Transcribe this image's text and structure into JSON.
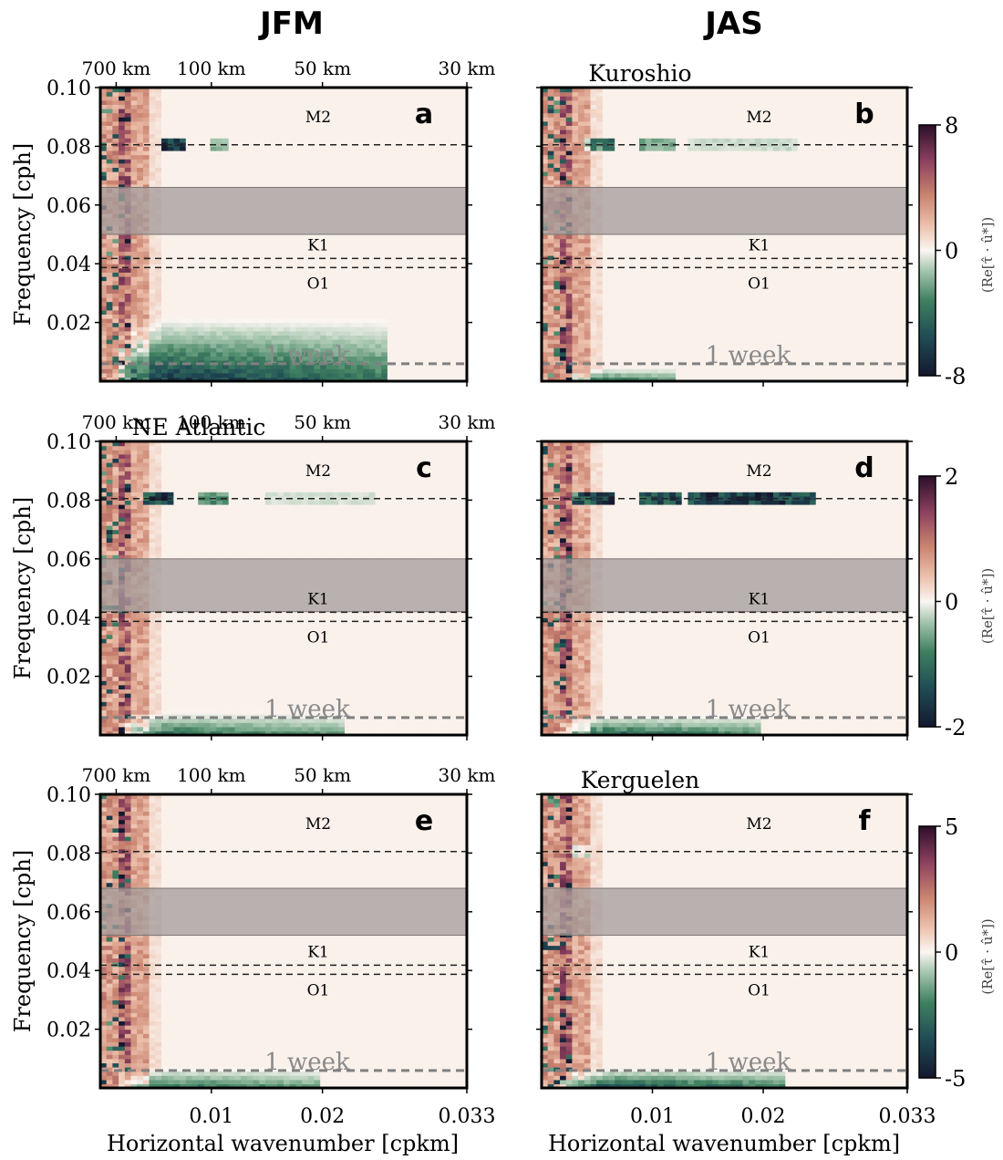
{
  "column_titles": [
    "JFM",
    "JAS"
  ],
  "xlabel": "Horizontal wavenumber [cpkm]",
  "ylabel": "Frequency [cph]",
  "colorbar_label": "(Re[τ̂ · û*])",
  "chart_data": {
    "type": "heatmap",
    "xlim": [
      0.0,
      0.033
    ],
    "ylim": [
      0.0,
      0.1
    ],
    "x_ticks": [
      0.01,
      0.02,
      0.033
    ],
    "x_tick_labels": [
      "0.01",
      "0.02",
      "0.033"
    ],
    "y_ticks": [
      0.02,
      0.04,
      0.06,
      0.08,
      0.1
    ],
    "y_tick_labels": [
      "0.02",
      "0.04",
      "0.06",
      "0.08",
      "0.10"
    ],
    "top_axis": {
      "wavelength_labels": [
        "700 km",
        "100 km",
        "50 km",
        "30 km"
      ],
      "wavenumbers": [
        0.00143,
        0.01,
        0.02,
        0.033
      ]
    },
    "horizontal_lines": [
      {
        "name": "M2",
        "frequency": 0.0805
      },
      {
        "name": "K1",
        "frequency": 0.0418
      },
      {
        "name": "O1",
        "frequency": 0.0387
      },
      {
        "name": "1 week",
        "frequency": 0.00595
      }
    ],
    "panels": [
      {
        "id": "a",
        "season": "JFM",
        "region": "",
        "shaded_band": [
          0.05,
          0.066
        ],
        "color_limit": 8,
        "m2_blobs": [
          [
            0.0055,
            0.0075,
            0.9
          ],
          [
            0.01,
            0.0115,
            0.25
          ]
        ],
        "low_freq": {
          "kmax": 0.026,
          "fmax": 0.022,
          "strength": 0.9
        }
      },
      {
        "id": "b",
        "season": "JAS",
        "region": "Kuroshio",
        "shaded_band": [
          0.05,
          0.066
        ],
        "color_limit": 8,
        "m2_blobs": [
          [
            0.004,
            0.0065,
            0.55
          ],
          [
            0.009,
            0.012,
            0.3
          ],
          [
            0.013,
            0.023,
            0.12
          ]
        ],
        "low_freq": {
          "kmax": 0.012,
          "fmax": 0.005,
          "strength": 0.6
        }
      },
      {
        "id": "c",
        "season": "JFM",
        "region": "NE Atlantic",
        "shaded_band": [
          0.042,
          0.06
        ],
        "color_limit": 2,
        "m2_blobs": [
          [
            0.004,
            0.0065,
            0.9
          ],
          [
            0.009,
            0.0115,
            0.4
          ],
          [
            0.015,
            0.025,
            0.1
          ]
        ],
        "low_freq": {
          "kmax": 0.022,
          "fmax": 0.008,
          "strength": 0.6
        }
      },
      {
        "id": "d",
        "season": "JAS",
        "region": "",
        "shaded_band": [
          0.042,
          0.06
        ],
        "color_limit": 2,
        "m2_blobs": [
          [
            0.003,
            0.0065,
            1.0
          ],
          [
            0.009,
            0.0125,
            0.8
          ],
          [
            0.013,
            0.025,
            0.9
          ]
        ],
        "low_freq": {
          "kmax": 0.02,
          "fmax": 0.007,
          "strength": 0.7
        }
      },
      {
        "id": "e",
        "season": "JFM",
        "region": "",
        "shaded_band": [
          0.052,
          0.068
        ],
        "color_limit": 5,
        "m2_blobs": [],
        "low_freq": {
          "kmax": 0.02,
          "fmax": 0.007,
          "strength": 0.6
        }
      },
      {
        "id": "f",
        "season": "JAS",
        "region": "Kerguelen",
        "shaded_band": [
          0.052,
          0.068
        ],
        "color_limit": 5,
        "m2_blobs": [
          [
            0.003,
            0.0045,
            0.35
          ]
        ],
        "low_freq": {
          "kmax": 0.022,
          "fmax": 0.007,
          "strength": 0.8
        }
      }
    ],
    "colorbars": [
      {
        "panel_row": 0,
        "ticks": [
          "8",
          "0",
          "-8"
        ]
      },
      {
        "panel_row": 1,
        "ticks": [
          "2",
          "0",
          "-2"
        ]
      },
      {
        "panel_row": 2,
        "ticks": [
          "5",
          "0",
          "-5"
        ]
      }
    ]
  }
}
